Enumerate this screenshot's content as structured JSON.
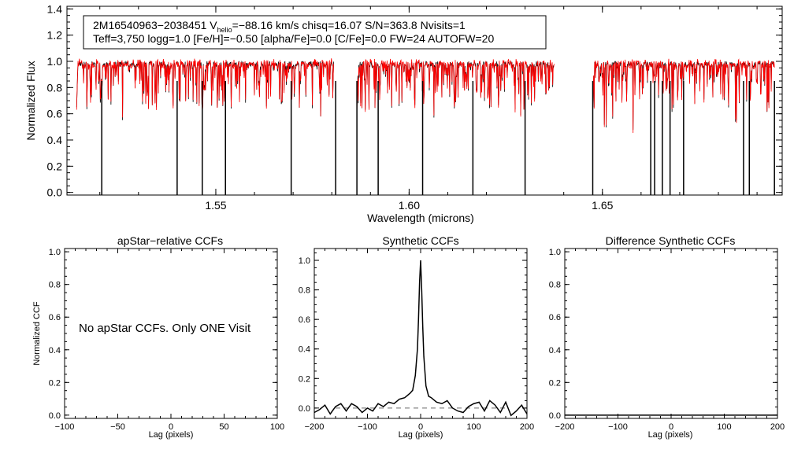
{
  "colors": {
    "observed": "#000000",
    "model": "#ff0000",
    "dashed": "#666666"
  },
  "chart_data": [
    {
      "type": "line",
      "id": "spectrum",
      "title": "",
      "xlabel": "Wavelength (microns)",
      "ylabel": "Normalized Flux",
      "xlim": [
        1.5115,
        1.6965
      ],
      "ylim": [
        -0.02,
        1.42
      ],
      "xticks": [
        1.55,
        1.6,
        1.65
      ],
      "xtick_labels": [
        "1.55",
        "1.60",
        "1.65"
      ],
      "yticks": [
        0.0,
        0.2,
        0.4,
        0.6,
        0.8,
        1.0,
        1.2,
        1.4
      ],
      "ytick_labels": [
        "0.0",
        "0.2",
        "0.4",
        "0.6",
        "0.8",
        "1.0",
        "1.2",
        "1.4"
      ],
      "segments": [
        [
          1.514,
          1.5805
        ],
        [
          1.5865,
          1.6375
        ],
        [
          1.6475,
          1.6945
        ]
      ],
      "bad_pixel_drops": [
        1.5205,
        1.54,
        1.5465,
        1.5525,
        1.5695,
        1.581,
        1.5865,
        1.592,
        1.6035,
        1.6165,
        1.63,
        1.6475,
        1.6625,
        1.6635,
        1.6655,
        1.6675,
        1.671,
        1.6865,
        1.688,
        1.6945
      ],
      "info_box": {
        "line1_pre": "2M16540963−2038451  V",
        "line1_sub": "helio",
        "line1_post": "=−88.16 km/s  chisq=16.07  S/N=363.8  Nvisits=1",
        "line2": "Teff=3,750 logg=1.0 [Fe/H]=−0.50 [alpha/Fe]=0.0 [C/Fe]=0.0 FW=24 AUTOFW=20"
      }
    },
    {
      "type": "line",
      "id": "apstar-ccf",
      "title": "apStar−relative CCFs",
      "xlabel": "Lag (pixels)",
      "ylabel": "Normalized CCF",
      "xlim": [
        -100,
        100
      ],
      "ylim": [
        -0.02,
        1.02
      ],
      "xticks": [
        -100,
        -50,
        0,
        50,
        100
      ],
      "xtick_labels": [
        "−100",
        "−50",
        "0",
        "50",
        "100"
      ],
      "yticks": [
        0.0,
        0.2,
        0.4,
        0.6,
        0.8,
        1.0
      ],
      "ytick_labels": [
        "0.0",
        "0.2",
        "0.4",
        "0.6",
        "0.8",
        "1.0"
      ],
      "message": "No apStar CCFs.  Only ONE Visit",
      "series": []
    },
    {
      "type": "line",
      "id": "synthetic-ccf",
      "title": "Synthetic CCFs",
      "xlabel": "Lag (pixels)",
      "ylabel": "",
      "xlim": [
        -200,
        200
      ],
      "ylim": [
        -0.07,
        1.08
      ],
      "xticks": [
        -200,
        -100,
        0,
        100,
        200
      ],
      "xtick_labels": [
        "−200",
        "−100",
        "0",
        "100",
        "200"
      ],
      "yticks": [
        0.0,
        0.2,
        0.4,
        0.6,
        0.8,
        1.0
      ],
      "ytick_labels": [
        "0.0",
        "0.2",
        "0.4",
        "0.6",
        "0.8",
        "1.0"
      ],
      "peak": {
        "lag": 0,
        "value": 1.0
      },
      "zero_line": {
        "from": -160,
        "to": 160,
        "value": 0.0
      },
      "series": [
        {
          "name": "CCF",
          "x": [
            -200,
            -190,
            -180,
            -170,
            -160,
            -150,
            -140,
            -130,
            -120,
            -110,
            -100,
            -90,
            -80,
            -70,
            -60,
            -50,
            -40,
            -30,
            -20,
            -15,
            -10,
            -6,
            -4,
            -2,
            0,
            2,
            4,
            6,
            10,
            15,
            20,
            30,
            40,
            50,
            60,
            70,
            80,
            90,
            100,
            110,
            120,
            130,
            140,
            150,
            160,
            170,
            180,
            190,
            200
          ],
          "y": [
            -0.03,
            -0.01,
            0.02,
            -0.04,
            0.01,
            0.03,
            -0.02,
            0.03,
            0.01,
            -0.03,
            0.0,
            -0.02,
            0.03,
            0.01,
            0.04,
            0.03,
            0.06,
            0.07,
            0.1,
            0.12,
            0.22,
            0.4,
            0.6,
            0.85,
            1.0,
            0.8,
            0.55,
            0.35,
            0.15,
            0.08,
            0.07,
            0.04,
            0.03,
            0.05,
            0.0,
            -0.02,
            -0.03,
            0.01,
            0.03,
            0.04,
            -0.02,
            0.05,
            0.02,
            -0.03,
            0.04,
            -0.05,
            -0.02,
            0.02,
            -0.04
          ]
        }
      ]
    },
    {
      "type": "line",
      "id": "difference-ccf",
      "title": "Difference Synthetic CCFs",
      "xlabel": "Lag (pixels)",
      "ylabel": "",
      "xlim": [
        -200,
        200
      ],
      "ylim": [
        -0.02,
        1.02
      ],
      "xticks": [
        -200,
        -100,
        0,
        100,
        200
      ],
      "xtick_labels": [
        "−200",
        "−100",
        "0",
        "100",
        "200"
      ],
      "yticks": [
        0.0,
        0.2,
        0.4,
        0.6,
        0.8,
        1.0
      ],
      "ytick_labels": [
        "0.0",
        "0.2",
        "0.4",
        "0.6",
        "0.8",
        "1.0"
      ],
      "series": [
        {
          "name": "difference",
          "x": [
            -200,
            200
          ],
          "y": [
            0.0,
            0.0
          ]
        }
      ]
    }
  ]
}
